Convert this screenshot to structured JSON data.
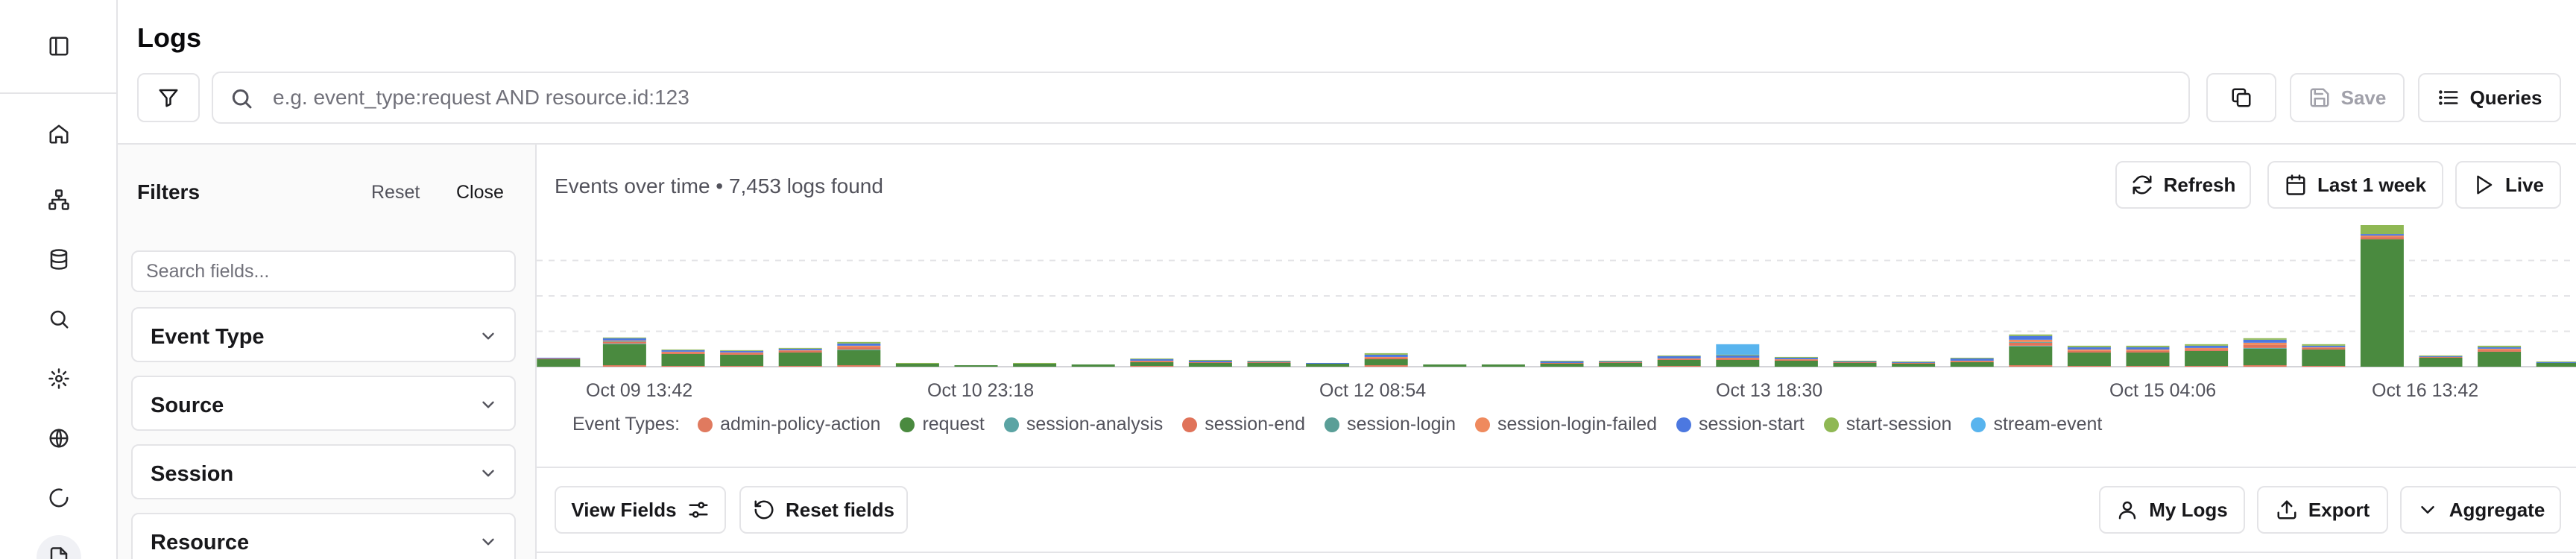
{
  "header": {
    "title": "Logs",
    "search_placeholder": "e.g. event_type:request AND resource.id:123",
    "save_label": "Save",
    "queries_label": "Queries"
  },
  "rail": {
    "icons": [
      "sidebar-toggle-icon",
      "home-icon",
      "sitemap-icon",
      "database-icon",
      "search-icon",
      "settings-icon",
      "globe-icon",
      "loader-icon",
      "logs-icon"
    ]
  },
  "filters": {
    "title": "Filters",
    "reset_label": "Reset",
    "close_label": "Close",
    "search_placeholder": "Search fields...",
    "facets": [
      "Event Type",
      "Source",
      "Session",
      "Resource"
    ]
  },
  "toolbar": {
    "summary": "Events over time • 7,453 logs found",
    "refresh_label": "Refresh",
    "range_label": "Last 1 week",
    "live_label": "Live"
  },
  "chart_data": {
    "type": "bar",
    "stacked": true,
    "tick_labels": [
      "Oct 09 13:42",
      "Oct 10 23:18",
      "Oct 12 08:54",
      "Oct 13 18:30",
      "Oct 15 04:06",
      "Oct 16 13:42"
    ],
    "legend_title": "Event Types:",
    "series": [
      {
        "name": "admin-policy-action",
        "color": "#e07a5f",
        "values": [
          0,
          2,
          1,
          1,
          1,
          2,
          0,
          0,
          0,
          0,
          1,
          0,
          0,
          0,
          2,
          0,
          0,
          0,
          0,
          1,
          0,
          0,
          0,
          0,
          0,
          2,
          1,
          1,
          1,
          2,
          1,
          0,
          0,
          0,
          0
        ]
      },
      {
        "name": "request",
        "color": "#4a8a3f",
        "values": [
          10,
          28,
          16,
          15,
          18,
          20,
          4,
          2,
          4,
          3,
          5,
          5,
          5,
          4,
          8,
          3,
          3,
          4,
          5,
          8,
          9,
          8,
          5,
          4,
          6,
          25,
          18,
          18,
          20,
          22,
          22,
          170,
          12,
          20,
          5
        ]
      },
      {
        "name": "session-analysis",
        "color": "#5ba4a4",
        "values": [
          0,
          1,
          0,
          0,
          0,
          1,
          0,
          0,
          0,
          0,
          0,
          0,
          0,
          0,
          0,
          0,
          0,
          0,
          0,
          0,
          0,
          0,
          0,
          0,
          0,
          1,
          0,
          0,
          0,
          1,
          0,
          0,
          0,
          0,
          0
        ]
      },
      {
        "name": "session-end",
        "color": "#e0735a",
        "values": [
          1,
          2,
          2,
          2,
          2,
          3,
          0,
          0,
          0,
          0,
          1,
          1,
          1,
          0,
          2,
          0,
          0,
          1,
          1,
          1,
          2,
          1,
          1,
          1,
          1,
          4,
          2,
          2,
          2,
          4,
          2,
          3,
          1,
          2,
          0
        ]
      },
      {
        "name": "session-login",
        "color": "#5a9e97",
        "values": [
          0,
          1,
          0,
          0,
          0,
          0,
          0,
          0,
          0,
          0,
          0,
          0,
          0,
          0,
          0,
          0,
          0,
          0,
          0,
          0,
          0,
          0,
          0,
          0,
          0,
          1,
          0,
          0,
          0,
          0,
          0,
          0,
          0,
          0,
          0
        ]
      },
      {
        "name": "session-login-failed",
        "color": "#ef8a5e",
        "values": [
          0,
          1,
          1,
          1,
          1,
          2,
          0,
          0,
          0,
          0,
          1,
          0,
          0,
          0,
          1,
          0,
          0,
          0,
          0,
          1,
          1,
          1,
          0,
          0,
          1,
          3,
          2,
          2,
          2,
          3,
          1,
          2,
          0,
          2,
          0
        ]
      },
      {
        "name": "session-start",
        "color": "#4c78e0",
        "values": [
          1,
          3,
          2,
          2,
          2,
          3,
          0,
          0,
          0,
          0,
          2,
          2,
          1,
          1,
          3,
          0,
          0,
          2,
          1,
          3,
          3,
          2,
          1,
          1,
          3,
          5,
          3,
          3,
          3,
          4,
          2,
          2,
          1,
          2,
          1
        ]
      },
      {
        "name": "start-session",
        "color": "#8fb854",
        "values": [
          0,
          1,
          1,
          1,
          1,
          2,
          1,
          0,
          1,
          0,
          1,
          1,
          1,
          0,
          2,
          0,
          0,
          1,
          1,
          1,
          1,
          1,
          1,
          1,
          1,
          2,
          2,
          2,
          2,
          2,
          2,
          12,
          1,
          2,
          1
        ]
      },
      {
        "name": "stream-event",
        "color": "#58b4ee",
        "values": [
          0,
          0,
          0,
          0,
          0,
          0,
          0,
          0,
          0,
          0,
          0,
          0,
          0,
          0,
          0,
          0,
          0,
          0,
          0,
          0,
          14,
          0,
          0,
          0,
          0,
          0,
          0,
          0,
          0,
          0,
          0,
          0,
          0,
          0,
          0
        ]
      }
    ]
  },
  "bottom_toolbar": {
    "view_fields_label": "View Fields",
    "reset_fields_label": "Reset fields",
    "my_logs_label": "My Logs",
    "export_label": "Export",
    "aggregate_label": "Aggregate"
  }
}
